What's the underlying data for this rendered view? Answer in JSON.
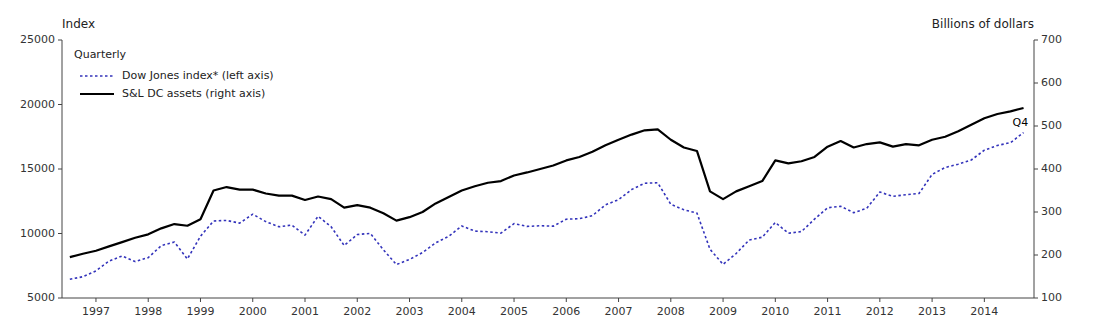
{
  "chart_data": {
    "type": "line",
    "y_label": "Index",
    "y2_label": "Billions of dollars",
    "subtitle": "Quarterly",
    "annotations": [
      {
        "text": "Q4",
        "x": 2014.8,
        "y": 17823
      }
    ],
    "x": [
      1996.5,
      1996.75,
      1997.0,
      1997.25,
      1997.5,
      1997.75,
      1998.0,
      1998.25,
      1998.5,
      1998.75,
      1999.0,
      1999.25,
      1999.5,
      1999.75,
      2000.0,
      2000.25,
      2000.5,
      2000.75,
      2001.0,
      2001.25,
      2001.5,
      2001.75,
      2002.0,
      2002.25,
      2002.5,
      2002.75,
      2003.0,
      2003.25,
      2003.5,
      2003.75,
      2004.0,
      2004.25,
      2004.5,
      2004.75,
      2005.0,
      2005.25,
      2005.5,
      2005.75,
      2006.0,
      2006.25,
      2006.5,
      2006.75,
      2007.0,
      2007.25,
      2007.5,
      2007.75,
      2008.0,
      2008.25,
      2008.5,
      2008.75,
      2009.0,
      2009.25,
      2009.5,
      2009.75,
      2010.0,
      2010.25,
      2010.5,
      2010.75,
      2011.0,
      2011.25,
      2011.5,
      2011.75,
      2012.0,
      2012.25,
      2012.5,
      2012.75,
      2013.0,
      2013.25,
      2013.5,
      2013.75,
      2014.0,
      2014.25,
      2014.5,
      2014.75
    ],
    "series": [
      {
        "name": "Dow Jones index* (left axis)",
        "color": "#3333BB",
        "line_style": "dotted",
        "values": [
          6448,
          6650,
          7100,
          7861,
          8259,
          7823,
          8131,
          9060,
          9338,
          8026,
          9786,
          10970,
          11012,
          10803,
          11497,
          10922,
          10522,
          10651,
          9878,
          11338,
          10523,
          9066,
          9920,
          10008,
          8736,
          7591,
          7992,
          8522,
          9275,
          9782,
          10583,
          10188,
          10140,
          10027,
          10766,
          10549,
          10600,
          10568,
          11109,
          11150,
          11382,
          12221,
          12622,
          13408,
          13896,
          13930,
          12263,
          11842,
          11583,
          8776,
          7609,
          8447,
          9497,
          9712,
          10856,
          10022,
          10148,
          11117,
          11992,
          12111,
          11614,
          11955,
          13213,
          12880,
          13009,
          13104,
          14579,
          15116,
          15376,
          15698,
          16457,
          16826,
          17042,
          17823
        ]
      },
      {
        "name": "S&L DC assets (right axis)",
        "color": "#000000",
        "line_style": "solid",
        "axis": "y2",
        "values": [
          195,
          203,
          210,
          220,
          230,
          240,
          248,
          262,
          272,
          268,
          283,
          350,
          358,
          352,
          352,
          343,
          338,
          338,
          328,
          336,
          330,
          310,
          316,
          310,
          297,
          280,
          288,
          300,
          320,
          335,
          350,
          360,
          368,
          372,
          385,
          392,
          400,
          408,
          420,
          428,
          440,
          455,
          468,
          480,
          490,
          492,
          468,
          450,
          442,
          348,
          330,
          348,
          360,
          372,
          420,
          413,
          418,
          428,
          452,
          465,
          450,
          458,
          462,
          452,
          458,
          455,
          468,
          475,
          488,
          503,
          518,
          528,
          534,
          542
        ]
      }
    ],
    "xlim": [
      1996.35,
      2014.95
    ],
    "xticks": [
      1997,
      1998,
      1999,
      2000,
      2001,
      2002,
      2003,
      2004,
      2005,
      2006,
      2007,
      2008,
      2009,
      2010,
      2011,
      2012,
      2013,
      2014
    ],
    "ylim": [
      5000,
      25000
    ],
    "yticks": [
      5000,
      10000,
      15000,
      20000,
      25000
    ],
    "y2lim": [
      100,
      700
    ],
    "y2ticks": [
      100,
      200,
      300,
      400,
      500,
      600,
      700
    ],
    "legend": "upper left",
    "grid": false
  }
}
